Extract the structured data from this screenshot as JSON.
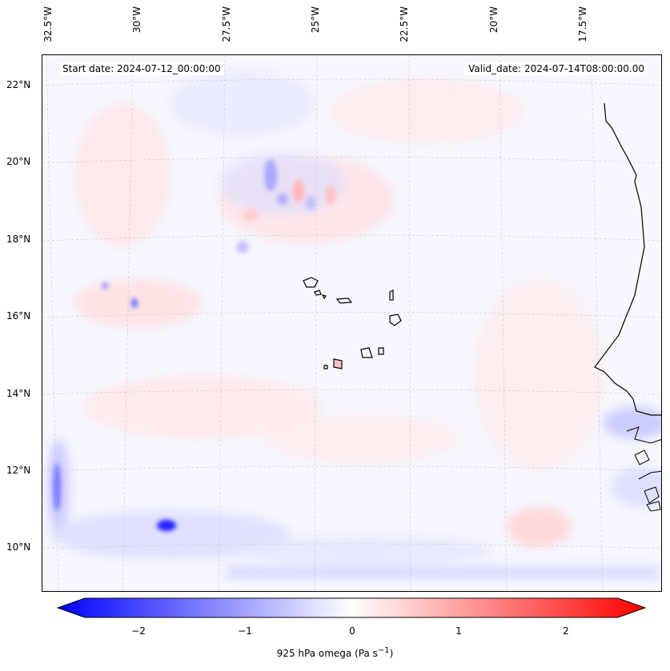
{
  "map": {
    "start_date": "Start date: 2024-07-12_00:00:00",
    "valid_date": "Valid_date: 2024-07-14T08:00:00.00",
    "lon_labels": [
      "32.5°W",
      "30°W",
      "27.5°W",
      "25°W",
      "22.5°W",
      "20°W",
      "17.5°W"
    ],
    "lat_labels": [
      "22°N",
      "20°N",
      "18°N",
      "16°N",
      "14°N",
      "12°N",
      "10°N"
    ],
    "variable": "925 hPa omega",
    "units": "Pa s",
    "units_exponent": "−1"
  },
  "colorbar": {
    "ticks": [
      "−2",
      "−1",
      "0",
      "1",
      "2"
    ],
    "min": -2.6,
    "max": 2.6,
    "negative_color": "#0000ff",
    "positive_color": "#ff0000"
  }
}
